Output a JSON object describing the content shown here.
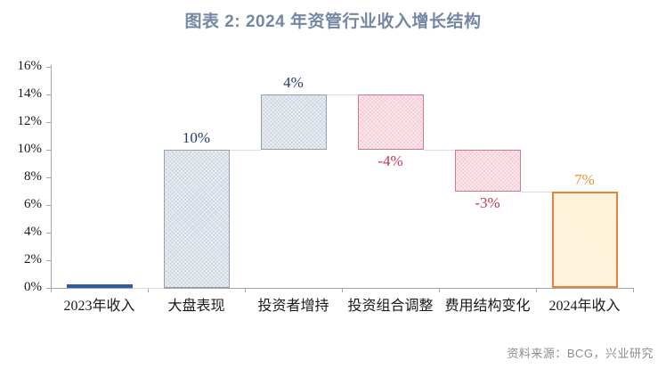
{
  "page": {
    "title": "图表 2:  2024 年资管行业收入增长结构",
    "source": "资料来源：BCG，兴业研究"
  },
  "chart_data": {
    "type": "bar",
    "subtype": "waterfall",
    "title": "图表 2:  2024 年资管行业收入增长结构",
    "categories": [
      "2023年收入",
      "大盘表现",
      "投资者增持",
      "投资组合调整",
      "费用结构变化",
      "2024年收入"
    ],
    "bars": [
      {
        "category": "2023年收入",
        "start": 0,
        "end": 0,
        "kind": "base",
        "label": "",
        "label_pos": "none"
      },
      {
        "category": "大盘表现",
        "start": 0,
        "end": 10,
        "kind": "increase",
        "label": "10%",
        "label_pos": "above"
      },
      {
        "category": "投资者增持",
        "start": 10,
        "end": 14,
        "kind": "increase",
        "label": "4%",
        "label_pos": "above"
      },
      {
        "category": "投资组合调整",
        "start": 14,
        "end": 10,
        "kind": "decrease",
        "label": "-4%",
        "label_pos": "below"
      },
      {
        "category": "费用结构变化",
        "start": 10,
        "end": 7,
        "kind": "decrease",
        "label": "-3%",
        "label_pos": "below"
      },
      {
        "category": "2024年收入",
        "start": 0,
        "end": 7,
        "kind": "total",
        "label": "7%",
        "label_pos": "above"
      }
    ],
    "y_axis": {
      "min": 0,
      "max": 16,
      "step": 2,
      "suffix": "%"
    },
    "xlabel": "",
    "ylabel": "",
    "grid": "off",
    "legend": "none",
    "colors": {
      "title": "#7587a3",
      "axis": "#a6a6a6",
      "connector": "#dcdcdc",
      "source": "#8c8c8c",
      "tick_label": "#1a1a1a",
      "category_label": "#1a1a1a",
      "base": {
        "fill": "#2f5ca8",
        "border": "#2f5ca8",
        "label": "#2f5ca8"
      },
      "increase": {
        "fill": "#ccd4df",
        "border": "#93a0b4",
        "label": "#203b68"
      },
      "decrease": {
        "fill": "#f4c9d2",
        "border": "#cb7b8c",
        "label": "#c23a50"
      },
      "total": {
        "fill": "#fdf0d3",
        "border": "#e2843c",
        "label": "#e8982f"
      }
    }
  }
}
